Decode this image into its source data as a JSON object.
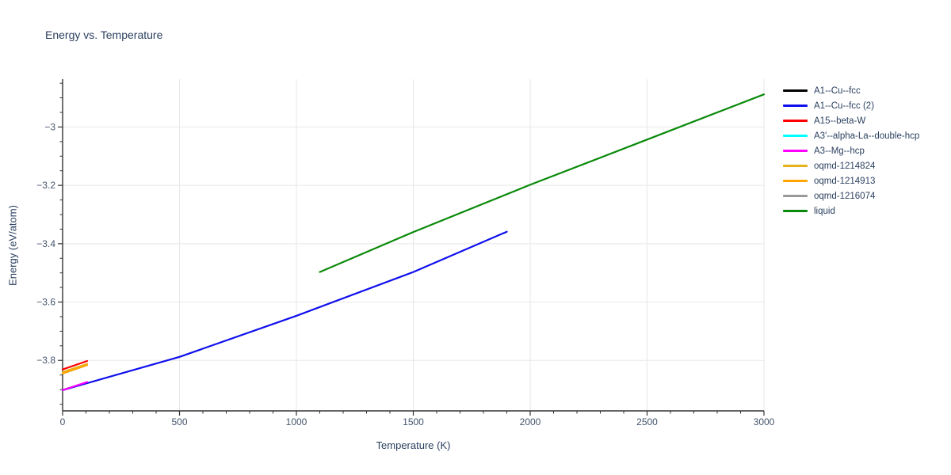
{
  "title": "Energy vs. Temperature",
  "axes": {
    "x_label": "Temperature (K)",
    "y_label": "Energy (eV/atom)",
    "x_tick_labels": [
      "0",
      "500",
      "1000",
      "1500",
      "2000",
      "2500",
      "3000"
    ],
    "y_tick_labels": [
      "−3",
      "−3.2",
      "−3.4",
      "−3.6",
      "−3.8"
    ]
  },
  "colors": {
    "title_text": "#2a3f5f",
    "tick_text": "#42536b",
    "axis_line": "#333333",
    "gridline": "#e7e7e7",
    "background": "#ffffff"
  },
  "chart_data": {
    "type": "line",
    "title": "Energy vs. Temperature",
    "xlabel": "Temperature (K)",
    "ylabel": "Energy (eV/atom)",
    "xlim": [
      0,
      3000
    ],
    "ylim": [
      -3.973,
      -2.836
    ],
    "x_ticks": [
      0,
      500,
      1000,
      1500,
      2000,
      2500,
      3000
    ],
    "x_minor_step": 100,
    "y_ticks": [
      -3.0,
      -3.2,
      -3.4,
      -3.6,
      -3.8
    ],
    "y_minor_step": 0.05,
    "grid": true,
    "legend_position": "right-outside",
    "series": [
      {
        "name": "A1--Cu--fcc",
        "color": "#000000",
        "hidden_under_other_traces": true,
        "x": [
          0,
          105
        ],
        "y": [
          -3.902,
          -3.875
        ]
      },
      {
        "name": "A1--Cu--fcc (2)",
        "color": "#0f0fee",
        "x": [
          0,
          500,
          1000,
          1500,
          1900
        ],
        "y": [
          -3.902,
          -3.788,
          -3.647,
          -3.497,
          -3.359
        ]
      },
      {
        "name": "A15--beta-W",
        "color": "#ff0000",
        "x": [
          0,
          105
        ],
        "y": [
          -3.831,
          -3.802
        ]
      },
      {
        "name": "A3'--alpha-La--double-hcp",
        "color": "#00ffff",
        "hidden_under_other_traces": true,
        "x": [
          0,
          105
        ],
        "y": [
          -3.902,
          -3.875
        ]
      },
      {
        "name": "A3--Mg--hcp",
        "color": "#ff00ff",
        "x": [
          0,
          105
        ],
        "y": [
          -3.902,
          -3.874
        ]
      },
      {
        "name": "oqmd-1214824",
        "color": "#e6b219",
        "x": [
          0,
          105
        ],
        "y": [
          -3.84,
          -3.812
        ]
      },
      {
        "name": "oqmd-1214913",
        "color": "#ffa500",
        "x": [
          0,
          105
        ],
        "y": [
          -3.845,
          -3.816
        ]
      },
      {
        "name": "oqmd-1216074",
        "color": "#9a9a9a",
        "hidden_under_other_traces": true,
        "x": [
          0,
          105
        ],
        "y": [
          -3.845,
          -3.816
        ]
      },
      {
        "name": "liquid",
        "color": "#0a8a0a",
        "x": [
          1100,
          1500,
          2000,
          2500,
          3000
        ],
        "y": [
          -3.497,
          -3.36,
          -3.198,
          -3.043,
          -2.888
        ]
      }
    ],
    "draw_order": [
      0,
      3,
      7,
      1,
      4,
      2,
      5,
      6,
      8
    ]
  }
}
